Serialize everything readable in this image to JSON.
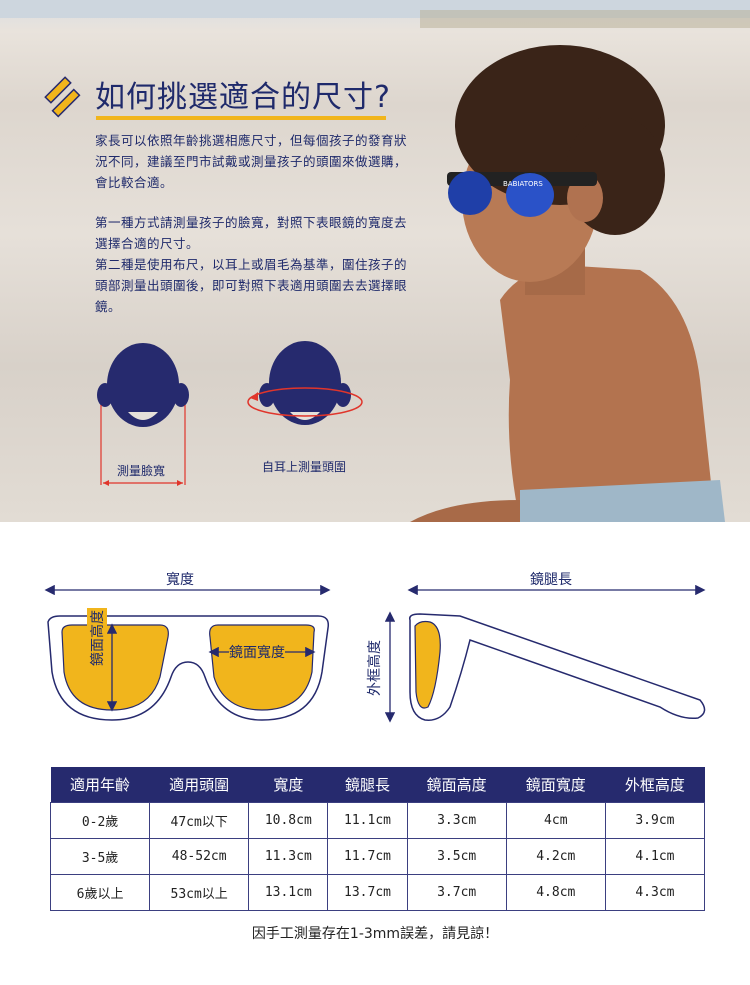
{
  "intro": {
    "title": "如何挑選適合的尺寸?",
    "paragraph1": "家長可以依照年齡挑選相應尺寸，但每個孩子的發育狀況不同，建議至門市試戴或測量孩子的頭圍來做選購，會比較合適。",
    "paragraph2_line1": "第一種方式請測量孩子的臉寬，對照下表眼鏡的寬度去選擇合適的尺寸。",
    "paragraph2_line2": "第二種是使用布尺，以耳上或眉毛為基準，圍住孩子的頭部測量出頭圍後，即可對照下表適用頭圍去去選擇眼鏡。",
    "head_label_1": "測量臉寬",
    "head_label_2": "自耳上測量頭圍",
    "glasses_brand": "BABIATORS"
  },
  "diagram": {
    "width_label": "寬度",
    "temple_label": "鏡腿長",
    "lens_height_label": "鏡面高度",
    "lens_width_label": "鏡面寬度",
    "frame_height_label": "外框高度"
  },
  "size_table": {
    "headers": [
      "適用年齡",
      "適用頭圍",
      "寬度",
      "鏡腿長",
      "鏡面高度",
      "鏡面寬度",
      "外框高度"
    ],
    "rows": [
      [
        "0-2歲",
        "47cm以下",
        "10.8cm",
        "11.1cm",
        "3.3cm",
        "4cm",
        "3.9cm"
      ],
      [
        "3-5歲",
        "48-52cm",
        "11.3cm",
        "11.7cm",
        "3.5cm",
        "4.2cm",
        "4.1cm"
      ],
      [
        "6歲以上",
        "53cm以上",
        "13.1cm",
        "13.7cm",
        "3.7cm",
        "4.8cm",
        "4.3cm"
      ]
    ]
  },
  "footnote": "因手工測量存在1-3mm誤差，請見諒！",
  "colors": {
    "navy": "#262a6e",
    "yellow": "#f1b51c",
    "red": "#e0352b"
  }
}
